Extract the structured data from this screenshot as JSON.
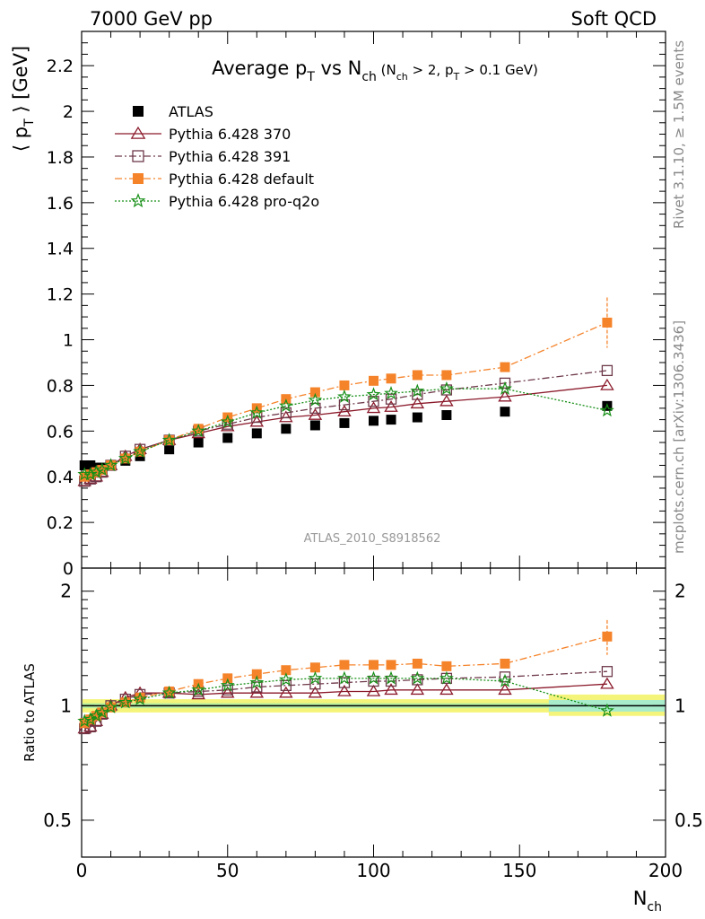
{
  "header": {
    "left": "7000 GeV pp",
    "right": "Soft QCD"
  },
  "title": {
    "main": "Average p",
    "main_sub": "T",
    "vs": " vs N",
    "vs_sub": "ch",
    "cut_open": " (N",
    "cut_sub1": "ch",
    "cut_mid": " > 2, p",
    "cut_sub2": "T",
    "cut_close": " > 0.1 GeV)"
  },
  "side_labels": {
    "rivet": "Rivet 3.1.10, ≥ 1.5M events",
    "mcplots": "mcplots.cern.ch [arXiv:1306.3436]"
  },
  "analysis_label": "ATLAS_2010_S8918562",
  "ylabel_main": {
    "open": "⟨ p",
    "sub": "T",
    "close": " ⟩  [GeV]"
  },
  "ylabel_ratio": "Ratio to ATLAS",
  "xlabel": {
    "base": "N",
    "sub": "ch"
  },
  "legend": [
    {
      "label": "ATLAS",
      "color": "#000000",
      "marker": "square-filled",
      "line": "none"
    },
    {
      "label": "Pythia 6.428 370",
      "color": "#8b1a2b",
      "marker": "triangle-open",
      "line": "solid"
    },
    {
      "label": "Pythia 6.428 391",
      "color": "#6e3a4a",
      "marker": "square-open",
      "line": "dashdot"
    },
    {
      "label": "Pythia 6.428 default",
      "color": "#f5832a",
      "marker": "square-filled",
      "line": "dashdot"
    },
    {
      "label": "Pythia 6.428 pro-q2o",
      "color": "#168f16",
      "marker": "star-open",
      "line": "dotted"
    }
  ],
  "chart_data": [
    {
      "type": "scatter",
      "panel": "main",
      "xlim": [
        0,
        200
      ],
      "ylim": [
        0,
        2.35
      ],
      "x_ticks": [
        "0",
        "50",
        "100",
        "150",
        "200"
      ],
      "y_ticks": [
        "0",
        "0.2",
        "0.4",
        "0.6",
        "0.8",
        "1",
        "1.2",
        "1.4",
        "1.6",
        "1.8",
        "2",
        "2.2"
      ],
      "series": [
        {
          "name": "ATLAS",
          "x": [
            1,
            3,
            5,
            7,
            10,
            15,
            20,
            30,
            40,
            50,
            60,
            70,
            80,
            90,
            100,
            106,
            115,
            125,
            145,
            180
          ],
          "y": [
            0.45,
            0.45,
            0.44,
            0.44,
            0.45,
            0.47,
            0.49,
            0.52,
            0.55,
            0.57,
            0.59,
            0.61,
            0.625,
            0.635,
            0.645,
            0.65,
            0.66,
            0.67,
            0.685,
            0.71
          ]
        },
        {
          "name": "Pythia 6.428 370",
          "x": [
            1,
            3,
            5,
            7,
            10,
            15,
            20,
            30,
            40,
            50,
            60,
            70,
            80,
            90,
            100,
            106,
            115,
            125,
            145,
            180
          ],
          "y": [
            0.38,
            0.39,
            0.4,
            0.42,
            0.45,
            0.49,
            0.52,
            0.56,
            0.59,
            0.62,
            0.64,
            0.66,
            0.67,
            0.685,
            0.7,
            0.705,
            0.72,
            0.73,
            0.75,
            0.8
          ]
        },
        {
          "name": "Pythia 6.428 391",
          "x": [
            1,
            3,
            5,
            7,
            10,
            15,
            20,
            30,
            40,
            50,
            60,
            70,
            80,
            90,
            100,
            106,
            115,
            125,
            145,
            180
          ],
          "y": [
            0.38,
            0.39,
            0.4,
            0.42,
            0.45,
            0.49,
            0.52,
            0.56,
            0.6,
            0.63,
            0.66,
            0.68,
            0.7,
            0.715,
            0.73,
            0.74,
            0.76,
            0.78,
            0.81,
            0.865
          ]
        },
        {
          "name": "Pythia 6.428 default",
          "x": [
            1,
            3,
            5,
            7,
            10,
            15,
            20,
            30,
            40,
            50,
            60,
            70,
            80,
            90,
            100,
            106,
            115,
            125,
            145,
            180
          ],
          "y": [
            0.4,
            0.41,
            0.42,
            0.43,
            0.45,
            0.48,
            0.51,
            0.56,
            0.61,
            0.66,
            0.7,
            0.74,
            0.77,
            0.8,
            0.82,
            0.83,
            0.845,
            0.845,
            0.88,
            1.075
          ],
          "yerr_last": 0.11
        },
        {
          "name": "Pythia 6.428 pro-q2o",
          "x": [
            1,
            3,
            5,
            7,
            10,
            15,
            20,
            30,
            40,
            50,
            60,
            70,
            80,
            90,
            100,
            106,
            115,
            125,
            145,
            180
          ],
          "y": [
            0.41,
            0.41,
            0.42,
            0.43,
            0.45,
            0.48,
            0.51,
            0.56,
            0.6,
            0.64,
            0.68,
            0.71,
            0.735,
            0.75,
            0.76,
            0.765,
            0.775,
            0.785,
            0.785,
            0.69
          ]
        }
      ]
    },
    {
      "type": "scatter",
      "panel": "ratio",
      "xlim": [
        0,
        200
      ],
      "ylim": [
        0.4,
        2.3
      ],
      "y_scale": "log",
      "x_ticks": [
        "0",
        "50",
        "100",
        "150",
        "200"
      ],
      "y_ticks": [
        "0.5",
        "1",
        "2"
      ],
      "ylabel": "Ratio to ATLAS",
      "series": [
        {
          "name": "Pythia 6.428 370",
          "x": [
            1,
            3,
            5,
            7,
            10,
            15,
            20,
            30,
            40,
            50,
            60,
            70,
            80,
            90,
            100,
            106,
            115,
            125,
            145,
            180
          ],
          "y": [
            0.87,
            0.88,
            0.91,
            0.95,
            1.0,
            1.05,
            1.08,
            1.08,
            1.07,
            1.08,
            1.08,
            1.08,
            1.08,
            1.09,
            1.09,
            1.1,
            1.1,
            1.1,
            1.1,
            1.14
          ]
        },
        {
          "name": "Pythia 6.428 391",
          "x": [
            1,
            3,
            5,
            7,
            10,
            15,
            20,
            30,
            40,
            50,
            60,
            70,
            80,
            90,
            100,
            106,
            115,
            125,
            145,
            180
          ],
          "y": [
            0.87,
            0.88,
            0.91,
            0.95,
            1.0,
            1.04,
            1.07,
            1.08,
            1.09,
            1.1,
            1.12,
            1.13,
            1.14,
            1.15,
            1.16,
            1.16,
            1.17,
            1.18,
            1.19,
            1.23
          ]
        },
        {
          "name": "Pythia 6.428 default",
          "x": [
            1,
            3,
            5,
            7,
            10,
            15,
            20,
            30,
            40,
            50,
            60,
            70,
            80,
            90,
            100,
            106,
            115,
            125,
            145,
            180
          ],
          "y": [
            0.9,
            0.92,
            0.94,
            0.96,
            0.99,
            1.02,
            1.05,
            1.09,
            1.14,
            1.18,
            1.21,
            1.24,
            1.26,
            1.28,
            1.28,
            1.28,
            1.29,
            1.27,
            1.29,
            1.52
          ],
          "yerr_last": 0.16
        },
        {
          "name": "Pythia 6.428 pro-q2o",
          "x": [
            1,
            3,
            5,
            7,
            10,
            15,
            20,
            30,
            40,
            50,
            60,
            70,
            80,
            90,
            100,
            106,
            115,
            125,
            145,
            180
          ],
          "y": [
            0.91,
            0.92,
            0.94,
            0.96,
            0.99,
            1.02,
            1.04,
            1.08,
            1.1,
            1.13,
            1.15,
            1.17,
            1.18,
            1.18,
            1.18,
            1.18,
            1.18,
            1.18,
            1.16,
            0.97
          ]
        }
      ]
    }
  ]
}
